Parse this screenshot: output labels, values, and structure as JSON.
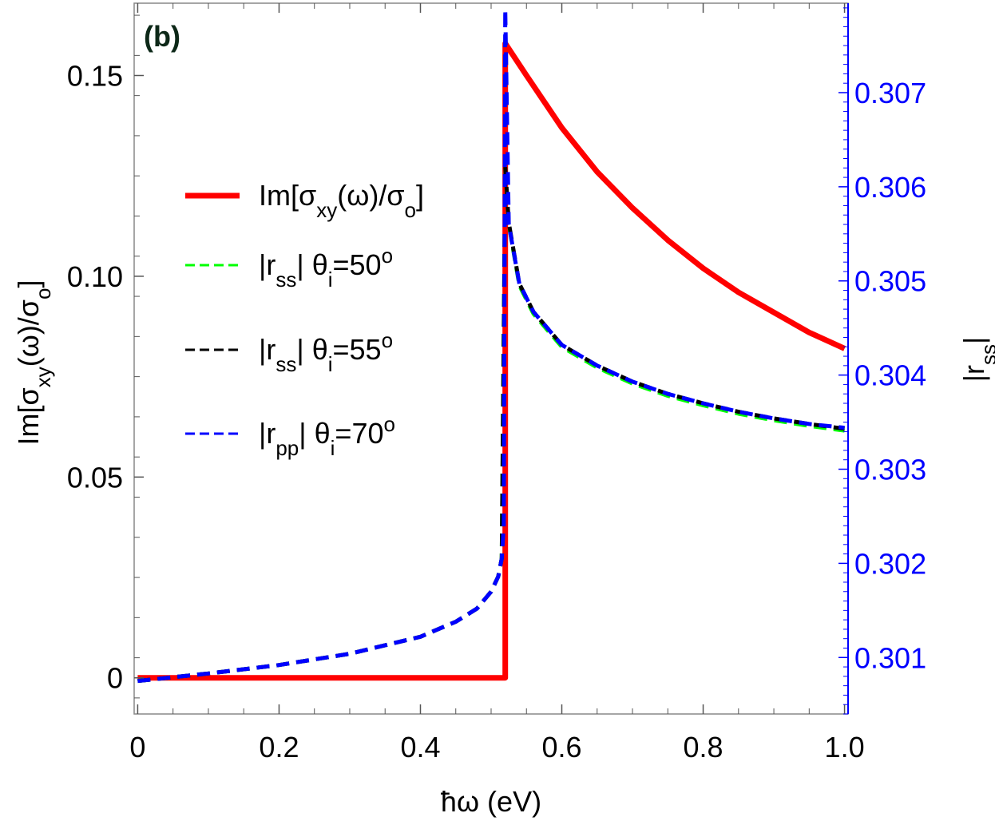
{
  "chart_data": {
    "type": "line",
    "panel_label": "(b)",
    "xlabel": "ħω (eV)",
    "ylabel_left": {
      "main": "Im[σ",
      "sub1": "xy",
      "mid": "(ω)/σ",
      "sub2": "o",
      "end": "]"
    },
    "ylabel_right": {
      "main": "|r",
      "sub": "ss",
      "end": "|"
    },
    "xlim": [
      -0.005,
      1.005
    ],
    "ylim_left": [
      -0.009,
      0.168
    ],
    "ylim_right": [
      0.3004,
      0.30795
    ],
    "x_ticks": [
      {
        "value": 0,
        "label": "0"
      },
      {
        "value": 0.2,
        "label": "0.2"
      },
      {
        "value": 0.4,
        "label": "0.4"
      },
      {
        "value": 0.6,
        "label": "0.6"
      },
      {
        "value": 0.8,
        "label": "0.8"
      },
      {
        "value": 1.0,
        "label": "1.0"
      }
    ],
    "y_ticks_left": [
      {
        "value": 0,
        "label": "0"
      },
      {
        "value": 0.05,
        "label": "0.05"
      },
      {
        "value": 0.1,
        "label": "0.10"
      },
      {
        "value": 0.15,
        "label": "0.15"
      }
    ],
    "y_ticks_right": [
      {
        "value": 0.301,
        "label": "0.301"
      },
      {
        "value": 0.302,
        "label": "0.302"
      },
      {
        "value": 0.303,
        "label": "0.303"
      },
      {
        "value": 0.304,
        "label": "0.304"
      },
      {
        "value": 0.305,
        "label": "0.305"
      },
      {
        "value": 0.306,
        "label": "0.306"
      },
      {
        "value": 0.307,
        "label": "0.307"
      }
    ],
    "grid": false,
    "legend_position": "upper-left",
    "colors": {
      "red": "#ff0000",
      "green": "#00ff00",
      "black": "#000000",
      "blue": "#0000ff",
      "right_axis": "#0000ff",
      "panel_label": "#0d2818"
    },
    "series": [
      {
        "name": "Im[σxy(ω)/σo]",
        "legend": {
          "main": "Im[σ",
          "sub1": "xy",
          "mid": "(ω)/σ",
          "sub2": "o",
          "end": "]"
        },
        "axis": "left",
        "color": "#ff0000",
        "dash": "solid",
        "x": [
          0,
          0.52,
          0.52,
          0.52,
          0.55,
          0.6,
          0.65,
          0.7,
          0.75,
          0.8,
          0.85,
          0.9,
          0.95,
          1.0
        ],
        "y": [
          0,
          0,
          0,
          0.158,
          0.15,
          0.137,
          0.126,
          0.117,
          0.109,
          0.102,
          0.096,
          0.091,
          0.086,
          0.082
        ]
      },
      {
        "name": "|rss| θi=50o",
        "legend": {
          "main": "|r",
          "sub1": "ss",
          "mid": "| θ",
          "sub2": "i",
          "end": "=50",
          "sup": "o"
        },
        "axis": "right",
        "color": "#00ff00",
        "dash": "dashed",
        "x": [
          0,
          0.1,
          0.2,
          0.3,
          0.4,
          0.45,
          0.48,
          0.5,
          0.51,
          0.515,
          0.52,
          0.525,
          0.54,
          0.56,
          0.6,
          0.65,
          0.7,
          0.75,
          0.8,
          0.85,
          0.9,
          0.95,
          1.0
        ],
        "y": [
          0.30075,
          0.30083,
          0.30092,
          0.30104,
          0.30122,
          0.30138,
          0.30152,
          0.3017,
          0.30186,
          0.30205,
          0.3062,
          0.3056,
          0.30495,
          0.30465,
          0.3043,
          0.30408,
          0.30391,
          0.30378,
          0.30368,
          0.30359,
          0.30352,
          0.30346,
          0.30341
        ]
      },
      {
        "name": "|rss| θi=55o",
        "legend": {
          "main": "|r",
          "sub1": "ss",
          "mid": "| θ",
          "sub2": "i",
          "end": "=55",
          "sup": "o"
        },
        "axis": "right",
        "color": "#000000",
        "dash": "dashed",
        "x": [
          0,
          0.1,
          0.2,
          0.3,
          0.4,
          0.45,
          0.48,
          0.5,
          0.51,
          0.515,
          0.52,
          0.525,
          0.54,
          0.56,
          0.6,
          0.65,
          0.7,
          0.75,
          0.8,
          0.85,
          0.9,
          0.95,
          1.0
        ],
        "y": [
          0.30075,
          0.30083,
          0.30092,
          0.30104,
          0.30122,
          0.30138,
          0.30152,
          0.3017,
          0.30186,
          0.30205,
          0.30621,
          0.30562,
          0.30497,
          0.30467,
          0.30432,
          0.3041,
          0.30393,
          0.3038,
          0.3037,
          0.30361,
          0.30354,
          0.30348,
          0.30343
        ]
      },
      {
        "name": "|rpp| θi=70o",
        "legend": {
          "main": "|r",
          "sub1": "pp",
          "mid": "| θ",
          "sub2": "i",
          "end": "=70",
          "sup": "o"
        },
        "axis": "right",
        "color": "#0000ff",
        "dash": "dashed",
        "x": [
          0,
          0.1,
          0.2,
          0.3,
          0.4,
          0.45,
          0.48,
          0.5,
          0.51,
          0.515,
          0.518,
          0.52,
          0.525,
          0.54,
          0.56,
          0.6,
          0.65,
          0.7,
          0.75,
          0.8,
          0.85,
          0.9,
          0.95,
          1.0
        ],
        "y": [
          0.30075,
          0.30083,
          0.30092,
          0.30104,
          0.30122,
          0.30138,
          0.30152,
          0.3017,
          0.30186,
          0.30205,
          0.3024,
          0.30788,
          0.3056,
          0.30497,
          0.30467,
          0.30432,
          0.3041,
          0.30393,
          0.3038,
          0.3037,
          0.30361,
          0.30354,
          0.30348,
          0.30344
        ]
      }
    ]
  }
}
